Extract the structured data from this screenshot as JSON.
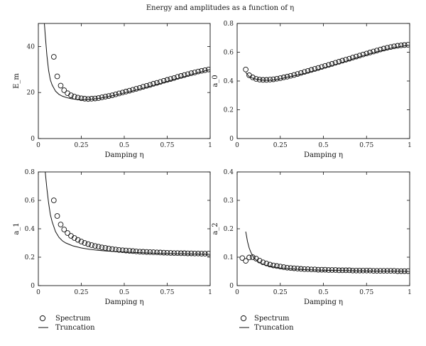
{
  "figure_title": "Energy and amplitudes as a function of η",
  "legends": [
    {
      "marker_label": "Spectrum",
      "line_label": "Truncation"
    },
    {
      "marker_label": "Spectrum",
      "line_label": "Truncation"
    }
  ],
  "chart_data": [
    {
      "type": "scatter",
      "xlabel": "Damping η",
      "ylabel": "E_m",
      "xlim": [
        0,
        1
      ],
      "ylim": [
        0,
        50
      ],
      "xticks": [
        "0",
        "0.25",
        "0.5",
        "0.75",
        "1"
      ],
      "yticks": [
        "0",
        "20",
        "40"
      ],
      "ytick_values": [
        0,
        20,
        40
      ],
      "series": [
        {
          "name": "Spectrum",
          "kind": "markers",
          "x": [
            0.09,
            0.11,
            0.13,
            0.15,
            0.17,
            0.19,
            0.21,
            0.23,
            0.25,
            0.27,
            0.29,
            0.31,
            0.33,
            0.35,
            0.37,
            0.39,
            0.41,
            0.43,
            0.45,
            0.47,
            0.49,
            0.51,
            0.53,
            0.55,
            0.57,
            0.59,
            0.61,
            0.63,
            0.65,
            0.67,
            0.69,
            0.71,
            0.73,
            0.75,
            0.77,
            0.79,
            0.81,
            0.83,
            0.85,
            0.87,
            0.89,
            0.91,
            0.93,
            0.95,
            0.97,
            0.99
          ],
          "y": [
            35.5,
            27.0,
            23.0,
            21.0,
            19.7,
            18.8,
            18.2,
            17.8,
            17.5,
            17.3,
            17.2,
            17.3,
            17.4,
            17.6,
            17.9,
            18.2,
            18.5,
            18.8,
            19.2,
            19.6,
            20.0,
            20.4,
            20.8,
            21.2,
            21.6,
            22.0,
            22.5,
            22.9,
            23.3,
            23.8,
            24.2,
            24.6,
            25.1,
            25.5,
            25.9,
            26.3,
            26.8,
            27.2,
            27.6,
            28.0,
            28.4,
            28.7,
            29.1,
            29.4,
            29.7,
            30.0
          ]
        },
        {
          "name": "Truncation",
          "kind": "line",
          "x": [
            0.035,
            0.04,
            0.05,
            0.06,
            0.07,
            0.08,
            0.1,
            0.12,
            0.14,
            0.16,
            0.18,
            0.2,
            0.22,
            0.25,
            0.28,
            0.3,
            0.35,
            0.4,
            0.45,
            0.5,
            0.55,
            0.6,
            0.65,
            0.7,
            0.75,
            0.8,
            0.85,
            0.9,
            0.95,
            1.0
          ],
          "y": [
            50,
            45,
            36,
            29.5,
            25.5,
            23.3,
            20.6,
            19.2,
            18.4,
            17.9,
            17.5,
            17.2,
            17.0,
            16.9,
            16.9,
            17.0,
            17.4,
            18.1,
            18.9,
            19.8,
            20.7,
            21.7,
            22.7,
            23.7,
            24.8,
            25.9,
            26.9,
            28.0,
            29.0,
            30.0
          ]
        }
      ]
    },
    {
      "type": "scatter",
      "xlabel": "Damping η",
      "ylabel": "a_0",
      "xlim": [
        0,
        1
      ],
      "ylim": [
        0,
        0.8
      ],
      "xticks": [
        "0",
        "0.25",
        "0.5",
        "0.75",
        "1"
      ],
      "yticks": [
        "0",
        "0.2",
        "0.4",
        "0.6",
        "0.8"
      ],
      "ytick_values": [
        0,
        0.2,
        0.4,
        0.6,
        0.8
      ],
      "series": [
        {
          "name": "Spectrum",
          "kind": "markers",
          "x": [
            0.05,
            0.07,
            0.09,
            0.11,
            0.13,
            0.15,
            0.17,
            0.19,
            0.21,
            0.23,
            0.25,
            0.27,
            0.29,
            0.31,
            0.33,
            0.35,
            0.37,
            0.39,
            0.41,
            0.43,
            0.45,
            0.47,
            0.49,
            0.51,
            0.53,
            0.55,
            0.57,
            0.59,
            0.61,
            0.63,
            0.65,
            0.67,
            0.69,
            0.71,
            0.73,
            0.75,
            0.77,
            0.79,
            0.81,
            0.83,
            0.85,
            0.87,
            0.89,
            0.91,
            0.93,
            0.95,
            0.97,
            0.99
          ],
          "y": [
            0.48,
            0.44,
            0.425,
            0.415,
            0.41,
            0.408,
            0.408,
            0.41,
            0.412,
            0.416,
            0.42,
            0.425,
            0.43,
            0.436,
            0.442,
            0.449,
            0.456,
            0.463,
            0.47,
            0.477,
            0.484,
            0.491,
            0.498,
            0.505,
            0.512,
            0.519,
            0.527,
            0.534,
            0.541,
            0.548,
            0.555,
            0.563,
            0.57,
            0.577,
            0.584,
            0.591,
            0.598,
            0.605,
            0.612,
            0.619,
            0.625,
            0.631,
            0.636,
            0.641,
            0.645,
            0.648,
            0.65,
            0.652
          ]
        },
        {
          "name": "Truncation",
          "kind": "line",
          "x": [
            0.05,
            0.07,
            0.1,
            0.15,
            0.2,
            0.25,
            0.3,
            0.4,
            0.5,
            0.6,
            0.7,
            0.8,
            0.9,
            1.0
          ],
          "y": [
            0.46,
            0.43,
            0.415,
            0.405,
            0.405,
            0.415,
            0.428,
            0.455,
            0.49,
            0.525,
            0.565,
            0.6,
            0.63,
            0.65
          ]
        }
      ]
    },
    {
      "type": "scatter",
      "xlabel": "Damping η",
      "ylabel": "a_1",
      "xlim": [
        0,
        1
      ],
      "ylim": [
        0,
        0.8
      ],
      "xticks": [
        "0",
        "0.25",
        "0.5",
        "0.75",
        "1"
      ],
      "yticks": [
        "0",
        "0.2",
        "0.4",
        "0.6",
        "0.8"
      ],
      "ytick_values": [
        0,
        0.2,
        0.4,
        0.6,
        0.8
      ],
      "series": [
        {
          "name": "Spectrum",
          "kind": "markers",
          "x": [
            0.09,
            0.11,
            0.13,
            0.15,
            0.17,
            0.19,
            0.21,
            0.23,
            0.25,
            0.27,
            0.29,
            0.31,
            0.33,
            0.35,
            0.37,
            0.39,
            0.41,
            0.43,
            0.45,
            0.47,
            0.49,
            0.51,
            0.53,
            0.55,
            0.57,
            0.59,
            0.61,
            0.63,
            0.65,
            0.67,
            0.69,
            0.71,
            0.73,
            0.75,
            0.77,
            0.79,
            0.81,
            0.83,
            0.85,
            0.87,
            0.89,
            0.91,
            0.93,
            0.95,
            0.97,
            0.99
          ],
          "y": [
            0.6,
            0.49,
            0.43,
            0.395,
            0.37,
            0.35,
            0.335,
            0.322,
            0.31,
            0.3,
            0.292,
            0.285,
            0.279,
            0.274,
            0.269,
            0.265,
            0.261,
            0.257,
            0.254,
            0.251,
            0.249,
            0.247,
            0.245,
            0.243,
            0.241,
            0.239,
            0.238,
            0.237,
            0.236,
            0.235,
            0.234,
            0.233,
            0.232,
            0.231,
            0.23,
            0.229,
            0.229,
            0.228,
            0.228,
            0.227,
            0.227,
            0.226,
            0.226,
            0.225,
            0.225,
            0.225
          ]
        },
        {
          "name": "Truncation",
          "kind": "line",
          "x": [
            0.04,
            0.05,
            0.06,
            0.07,
            0.08,
            0.1,
            0.12,
            0.14,
            0.16,
            0.2,
            0.25,
            0.3,
            0.35,
            0.4,
            0.5,
            0.6,
            0.7,
            0.8,
            0.9,
            1.0
          ],
          "y": [
            0.8,
            0.68,
            0.58,
            0.5,
            0.45,
            0.38,
            0.34,
            0.315,
            0.3,
            0.28,
            0.265,
            0.255,
            0.248,
            0.243,
            0.236,
            0.231,
            0.227,
            0.224,
            0.222,
            0.22
          ]
        }
      ]
    },
    {
      "type": "scatter",
      "xlabel": "Damping η",
      "ylabel": "a_2",
      "xlim": [
        0,
        1
      ],
      "ylim": [
        0,
        0.4
      ],
      "xticks": [
        "0",
        "0.25",
        "0.5",
        "0.75",
        "1"
      ],
      "yticks": [
        "0",
        "0.1",
        "0.2",
        "0.3",
        "0.4"
      ],
      "ytick_values": [
        0,
        0.1,
        0.2,
        0.3,
        0.4
      ],
      "series": [
        {
          "name": "Spectrum",
          "kind": "markers",
          "x": [
            0.03,
            0.05,
            0.07,
            0.09,
            0.11,
            0.13,
            0.15,
            0.17,
            0.19,
            0.21,
            0.23,
            0.25,
            0.27,
            0.29,
            0.31,
            0.33,
            0.35,
            0.37,
            0.39,
            0.41,
            0.43,
            0.45,
            0.47,
            0.49,
            0.51,
            0.53,
            0.55,
            0.57,
            0.59,
            0.61,
            0.63,
            0.65,
            0.67,
            0.69,
            0.71,
            0.73,
            0.75,
            0.77,
            0.79,
            0.81,
            0.83,
            0.85,
            0.87,
            0.89,
            0.91,
            0.93,
            0.95,
            0.97,
            0.99
          ],
          "y": [
            0.097,
            0.087,
            0.099,
            0.1,
            0.095,
            0.088,
            0.082,
            0.078,
            0.074,
            0.071,
            0.069,
            0.067,
            0.065,
            0.063,
            0.062,
            0.061,
            0.06,
            0.059,
            0.058,
            0.058,
            0.057,
            0.057,
            0.056,
            0.056,
            0.056,
            0.055,
            0.055,
            0.055,
            0.054,
            0.054,
            0.054,
            0.054,
            0.053,
            0.053,
            0.053,
            0.053,
            0.053,
            0.053,
            0.052,
            0.052,
            0.052,
            0.052,
            0.052,
            0.052,
            0.052,
            0.051,
            0.051,
            0.051,
            0.051
          ]
        },
        {
          "name": "Truncation",
          "kind": "line",
          "x": [
            0.05,
            0.06,
            0.07,
            0.08,
            0.09,
            0.1,
            0.12,
            0.14,
            0.16,
            0.18,
            0.2,
            0.25,
            0.3,
            0.4,
            0.5,
            0.6,
            0.7,
            0.8,
            0.9,
            1.0
          ],
          "y": [
            0.19,
            0.155,
            0.132,
            0.117,
            0.105,
            0.096,
            0.085,
            0.078,
            0.073,
            0.07,
            0.067,
            0.062,
            0.059,
            0.056,
            0.054,
            0.053,
            0.052,
            0.051,
            0.051,
            0.05
          ]
        }
      ]
    }
  ]
}
